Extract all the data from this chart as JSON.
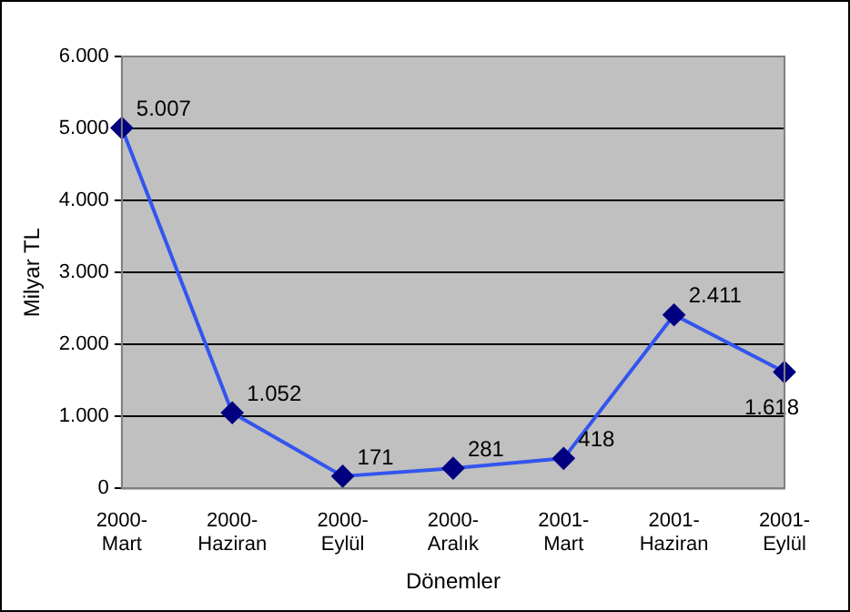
{
  "chart_data": {
    "type": "line",
    "xlabel": "Dönemler",
    "ylabel": "Milyar TL",
    "categories": [
      "2000-Mart",
      "2000-Haziran",
      "2000-Eylül",
      "2000-Aralık",
      "2001-Mart",
      "2001-Haziran",
      "2001-Eylül"
    ],
    "series": [
      {
        "color": "#3355ee",
        "values": [
          5007,
          1052,
          171,
          281,
          418,
          2411,
          1618
        ],
        "value_labels": [
          "5.007",
          "1.052",
          "171",
          "281",
          "418",
          "2.411",
          "1.618"
        ]
      }
    ],
    "ylim": [
      0,
      6000
    ],
    "yticks": [
      0,
      {
        "value": 1000,
        "label": "1.000"
      },
      {
        "value": 2000,
        "label": "2.000"
      },
      {
        "value": 3000,
        "label": "3.000"
      },
      {
        "value": 4000,
        "label": "4.000"
      },
      {
        "value": 5000,
        "label": "5.000"
      },
      {
        "value": 6000,
        "label": "6.000"
      }
    ],
    "grid": "y",
    "marker": "diamond",
    "line_style": "solid",
    "legend": false
  }
}
